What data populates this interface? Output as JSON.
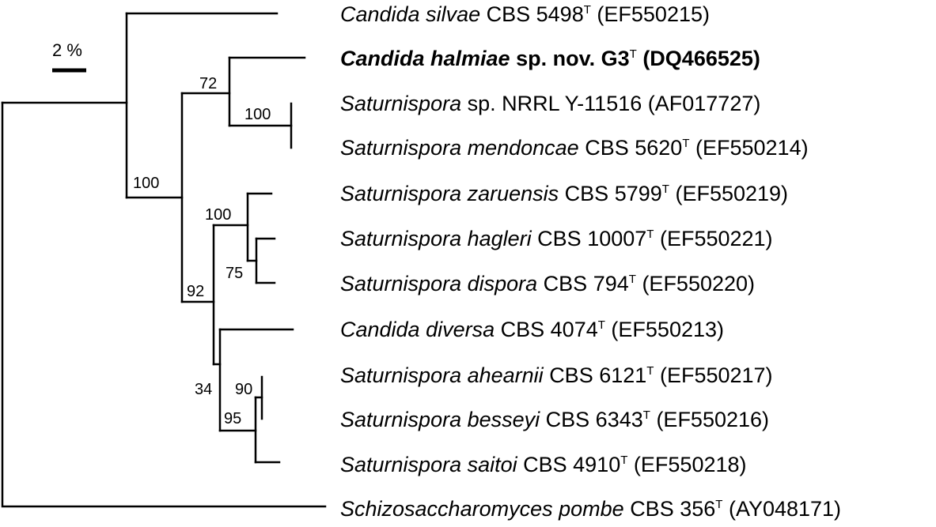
{
  "scale_bar": {
    "label": "2 %"
  },
  "taxa": [
    {
      "id": "silvae",
      "genus_species": "Candida silvae",
      "strain": "CBS 5498",
      "sup": "T",
      "accession": "(EF550215)",
      "bold": false
    },
    {
      "id": "halmiae",
      "genus_species": "Candida halmiae",
      "strain": "sp. nov. G3",
      "sup": "T",
      "accession": "(DQ466525)",
      "bold": true
    },
    {
      "id": "nrrl",
      "genus_species": "Saturnispora",
      "strain": "sp. NRRL Y-11516",
      "sup": "",
      "accession": "(AF017727)",
      "bold": false
    },
    {
      "id": "mendoncae",
      "genus_species": "Saturnispora mendoncae",
      "strain": "CBS 5620",
      "sup": "T",
      "accession": "(EF550214)",
      "bold": false
    },
    {
      "id": "zaruensis",
      "genus_species": "Saturnispora zaruensis",
      "strain": "CBS 5799",
      "sup": "T",
      "accession": "(EF550219)",
      "bold": false
    },
    {
      "id": "hagleri",
      "genus_species": "Saturnispora hagleri",
      "strain": "CBS 10007",
      "sup": "T",
      "accession": "(EF550221)",
      "bold": false
    },
    {
      "id": "dispora",
      "genus_species": "Saturnispora dispora",
      "strain": "CBS 794",
      "sup": "T",
      "accession": "(EF550220)",
      "bold": false
    },
    {
      "id": "diversa",
      "genus_species": "Candida diversa",
      "strain": "CBS 4074",
      "sup": "T",
      "accession": "(EF550213)",
      "bold": false
    },
    {
      "id": "ahearnii",
      "genus_species": "Saturnispora ahearnii",
      "strain": "CBS 6121",
      "sup": "T",
      "accession": "(EF550217)",
      "bold": false
    },
    {
      "id": "besseyi",
      "genus_species": "Saturnispora besseyi",
      "strain": "CBS 6343",
      "sup": "T",
      "accession": "(EF550216)",
      "bold": false
    },
    {
      "id": "saitoi",
      "genus_species": "Saturnispora saitoi",
      "strain": "CBS 4910",
      "sup": "T",
      "accession": "(EF550218)",
      "bold": false
    },
    {
      "id": "pombe",
      "genus_species": "Schizosaccharomyces pombe",
      "strain": "CBS 356",
      "sup": "T",
      "accession": "(AY048171)",
      "bold": false
    }
  ],
  "bootstrap_values": [
    {
      "id": "b72",
      "value": "72"
    },
    {
      "id": "b100a",
      "value": "100"
    },
    {
      "id": "b100b",
      "value": "100"
    },
    {
      "id": "b100c",
      "value": "100"
    },
    {
      "id": "b75",
      "value": "75"
    },
    {
      "id": "b92",
      "value": "92"
    },
    {
      "id": "b34",
      "value": "34"
    },
    {
      "id": "b90",
      "value": "90"
    },
    {
      "id": "b95",
      "value": "95"
    }
  ]
}
